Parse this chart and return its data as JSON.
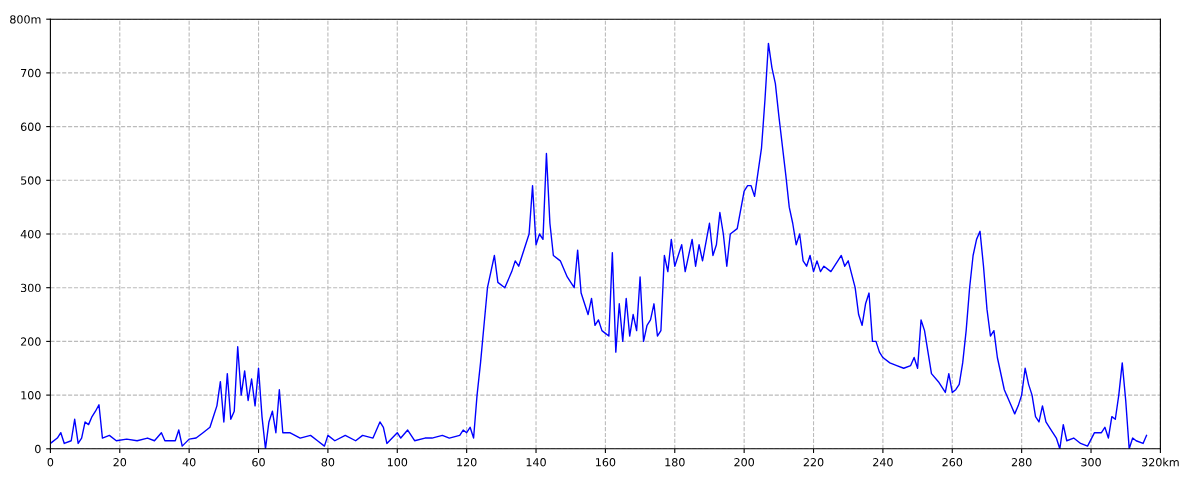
{
  "chart_data": {
    "type": "line",
    "x": [
      0,
      2,
      3,
      4,
      6,
      7,
      8,
      9,
      10,
      11,
      12,
      13,
      14,
      15,
      17,
      19,
      22,
      25,
      28,
      30,
      32,
      33,
      36,
      37,
      38,
      40,
      42,
      44,
      46,
      47,
      48,
      49,
      50,
      51,
      52,
      53,
      54,
      55,
      56,
      57,
      58,
      59,
      60,
      61,
      62,
      63,
      64,
      65,
      66,
      67,
      69,
      72,
      75,
      77,
      79,
      80,
      82,
      85,
      88,
      90,
      93,
      95,
      96,
      97,
      100,
      101,
      103,
      105,
      108,
      110,
      113,
      115,
      118,
      119,
      120,
      121,
      122,
      123,
      124,
      125,
      126,
      127,
      128,
      129,
      131,
      133,
      134,
      135,
      136,
      137,
      138,
      139,
      140,
      141,
      142,
      143,
      144,
      145,
      147,
      149,
      151,
      152,
      153,
      154,
      155,
      156,
      157,
      158,
      159,
      160,
      161,
      162,
      163,
      164,
      165,
      166,
      167,
      168,
      169,
      170,
      171,
      172,
      173,
      174,
      175,
      176,
      177,
      178,
      179,
      180,
      182,
      183,
      185,
      186,
      187,
      188,
      190,
      191,
      192,
      193,
      194,
      195,
      196,
      198,
      200,
      201,
      202,
      203,
      205,
      206,
      207,
      208,
      209,
      210,
      212,
      213,
      214,
      215,
      216,
      217,
      218,
      219,
      220,
      221,
      222,
      223,
      225,
      227,
      228,
      229,
      230,
      232,
      233,
      234,
      235,
      236,
      237,
      238,
      239,
      240,
      242,
      244,
      246,
      248,
      249,
      250,
      251,
      252,
      253,
      254,
      256,
      258,
      259,
      260,
      261,
      262,
      263,
      264,
      265,
      266,
      267,
      268,
      269,
      270,
      271,
      272,
      273,
      275,
      277,
      278,
      279,
      280,
      281,
      282,
      283,
      284,
      285,
      286,
      287,
      288,
      290,
      291,
      292,
      293,
      295,
      297,
      299,
      301,
      303,
      304,
      305,
      306,
      307,
      308,
      309,
      310,
      311,
      312,
      313,
      315,
      316
    ],
    "series": [
      {
        "color": "#0000ff",
        "values": [
          10,
          20,
          30,
          10,
          15,
          55,
          10,
          20,
          50,
          45,
          60,
          70,
          82,
          20,
          25,
          15,
          18,
          15,
          20,
          15,
          30,
          15,
          15,
          35,
          5,
          18,
          20,
          30,
          40,
          60,
          80,
          125,
          50,
          140,
          55,
          70,
          190,
          100,
          145,
          90,
          130,
          80,
          150,
          60,
          0,
          50,
          70,
          30,
          110,
          30,
          30,
          20,
          25,
          15,
          5,
          25,
          15,
          25,
          15,
          25,
          20,
          50,
          40,
          10,
          30,
          20,
          35,
          15,
          20,
          20,
          25,
          20,
          25,
          35,
          30,
          40,
          20,
          100,
          160,
          230,
          300,
          330,
          360,
          310,
          300,
          330,
          350,
          340,
          360,
          380,
          400,
          490,
          380,
          400,
          390,
          550,
          420,
          360,
          350,
          320,
          300,
          370,
          290,
          270,
          250,
          280,
          230,
          240,
          220,
          215,
          210,
          365,
          180,
          270,
          200,
          280,
          210,
          250,
          220,
          320,
          200,
          230,
          240,
          270,
          210,
          220,
          360,
          330,
          390,
          340,
          380,
          330,
          390,
          340,
          380,
          350,
          420,
          360,
          380,
          440,
          400,
          340,
          400,
          410,
          480,
          490,
          490,
          470,
          560,
          650,
          755,
          710,
          680,
          620,
          510,
          450,
          420,
          380,
          400,
          350,
          340,
          360,
          330,
          350,
          330,
          340,
          330,
          350,
          360,
          340,
          350,
          300,
          250,
          230,
          270,
          290,
          200,
          200,
          180,
          170,
          160,
          155,
          150,
          155,
          170,
          150,
          240,
          220,
          180,
          140,
          125,
          105,
          140,
          105,
          110,
          120,
          160,
          220,
          300,
          360,
          390,
          405,
          340,
          260,
          210,
          220,
          170,
          110,
          80,
          65,
          80,
          100,
          150,
          120,
          100,
          60,
          50,
          80,
          50,
          40,
          20,
          0,
          45,
          15,
          20,
          10,
          5,
          30,
          30,
          40,
          20,
          60,
          55,
          100,
          160,
          90,
          0,
          20,
          15,
          10,
          25
        ]
      }
    ],
    "xlim": [
      0,
      320
    ],
    "ylim": [
      0,
      800
    ],
    "xticks": [
      0,
      20,
      40,
      60,
      80,
      100,
      120,
      140,
      160,
      180,
      200,
      220,
      240,
      260,
      280,
      300,
      {
        "value": 320,
        "label": "320km"
      }
    ],
    "yticks": [
      0,
      100,
      200,
      300,
      400,
      500,
      600,
      700,
      {
        "value": 800,
        "label": "800m"
      }
    ],
    "grid": true,
    "line_style": "solid",
    "marker": "none"
  }
}
